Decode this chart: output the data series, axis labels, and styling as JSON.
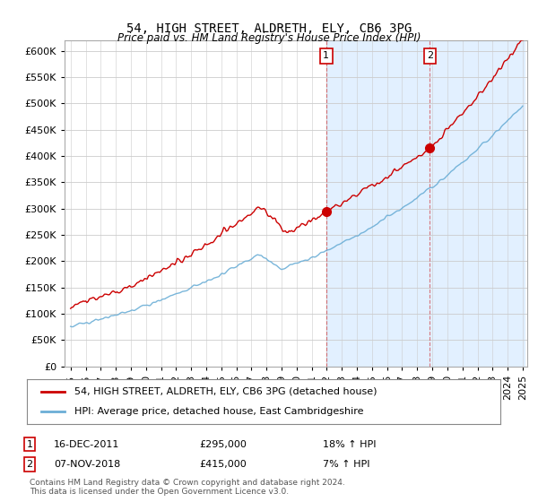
{
  "title": "54, HIGH STREET, ALDRETH, ELY, CB6 3PG",
  "subtitle": "Price paid vs. HM Land Registry's House Price Index (HPI)",
  "legend_line1": "54, HIGH STREET, ALDRETH, ELY, CB6 3PG (detached house)",
  "legend_line2": "HPI: Average price, detached house, East Cambridgeshire",
  "annotation1_date": "16-DEC-2011",
  "annotation1_price": "£295,000",
  "annotation1_hpi": "18% ↑ HPI",
  "annotation2_date": "07-NOV-2018",
  "annotation2_price": "£415,000",
  "annotation2_hpi": "7% ↑ HPI",
  "footer": "Contains HM Land Registry data © Crown copyright and database right 2024.\nThis data is licensed under the Open Government Licence v3.0.",
  "hpi_color": "#6baed6",
  "price_color": "#cc0000",
  "highlight_color": "#ddeeff",
  "ylim": [
    0,
    620000
  ],
  "yticks": [
    0,
    50000,
    100000,
    150000,
    200000,
    250000,
    300000,
    350000,
    400000,
    450000,
    500000,
    550000,
    600000
  ],
  "sale1_year": 2011.96,
  "sale2_year": 2018.84,
  "sale1_price": 295000,
  "sale2_price": 415000
}
